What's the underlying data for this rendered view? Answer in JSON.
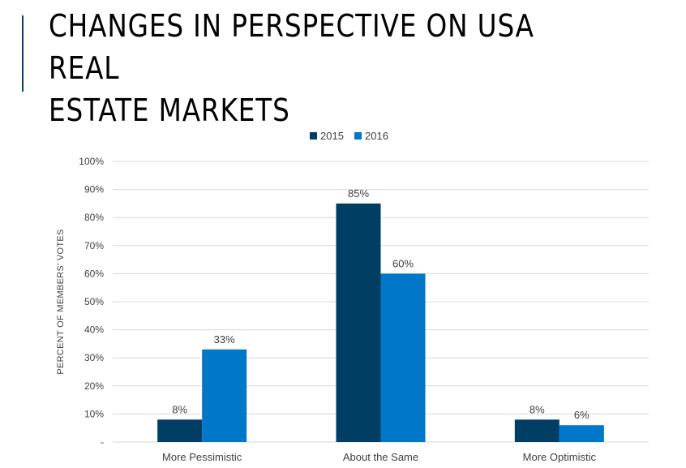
{
  "header": {
    "title_line1": "Changes in Perspective on USA Real",
    "title_line2": "Estate Markets"
  },
  "colors": {
    "accent": "#00436b",
    "series_2015": "#003e63",
    "series_2016": "#0077c8",
    "gridline": "#d9d9d9"
  },
  "chart_data": {
    "type": "bar",
    "title": "",
    "xlabel": "",
    "ylabel": "PERCENT OF MEMBERS' VOTES",
    "categories": [
      "More Pessimistic",
      "About the Same",
      "More Optimistic"
    ],
    "series": [
      {
        "name": "2015",
        "values": [
          8,
          85,
          8
        ],
        "labels": [
          "8%",
          "85%",
          "8%"
        ]
      },
      {
        "name": "2016",
        "values": [
          33,
          60,
          6
        ],
        "labels": [
          "33%",
          "60%",
          "6%"
        ]
      }
    ],
    "ylim": [
      0,
      100
    ],
    "yticks": [
      0,
      10,
      20,
      30,
      40,
      50,
      60,
      70,
      80,
      90,
      100
    ],
    "ytick_labels": [
      "-",
      "10%",
      "20%",
      "30%",
      "40%",
      "50%",
      "60%",
      "70%",
      "80%",
      "90%",
      "100%"
    ],
    "grid": true,
    "legend_position": "top"
  }
}
